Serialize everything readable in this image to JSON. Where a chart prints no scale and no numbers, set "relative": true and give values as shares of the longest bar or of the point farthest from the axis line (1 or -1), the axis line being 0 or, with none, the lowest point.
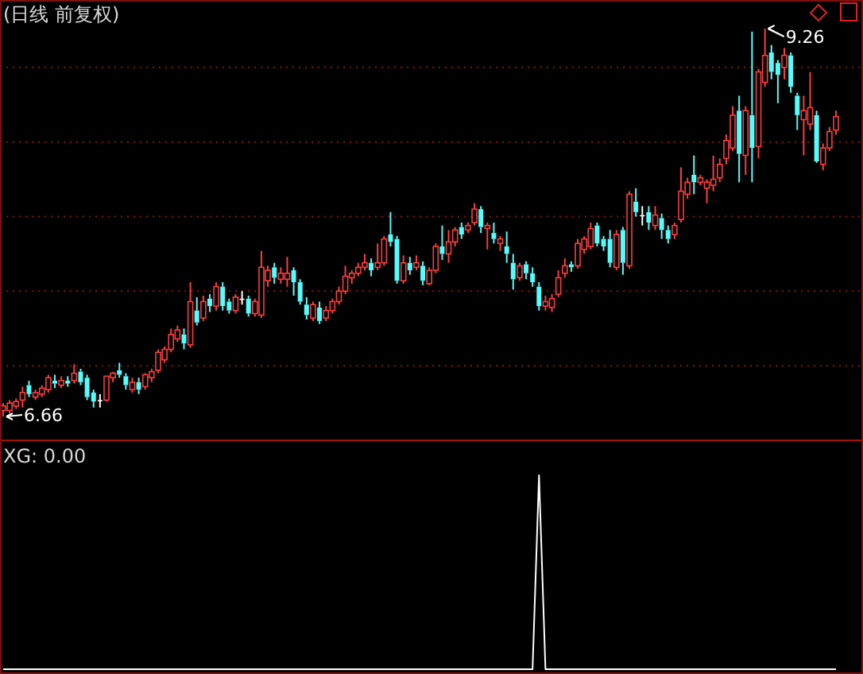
{
  "chart_data": [
    {
      "type": "candlestick",
      "title": "(日线 前复权)",
      "grid": "y",
      "categories": [
        null,
        null,
        null,
        null,
        null,
        null,
        null,
        null,
        null,
        null,
        null,
        null,
        null,
        null,
        null,
        null,
        null,
        null,
        null,
        null,
        null,
        null,
        null,
        null,
        null,
        null,
        null,
        null,
        null,
        null,
        null,
        null,
        null,
        null,
        null,
        null,
        null,
        null,
        null,
        null,
        null,
        null,
        null,
        null,
        null,
        null,
        null,
        null,
        null,
        null,
        null,
        null,
        null,
        null,
        null,
        null,
        null,
        null,
        null,
        null,
        null,
        null,
        null,
        null,
        null,
        null,
        null,
        null,
        null,
        null,
        null,
        null,
        null,
        null,
        null,
        null,
        null,
        null,
        null,
        null,
        null,
        null,
        null,
        null,
        null,
        null,
        null,
        null,
        null,
        null,
        null,
        null,
        null,
        null,
        null,
        null,
        null,
        null,
        null,
        null,
        null,
        null,
        null,
        null,
        null,
        null,
        null,
        null,
        null,
        null,
        null,
        null,
        null,
        null,
        null,
        null,
        null,
        null,
        null,
        null,
        null,
        null,
        null,
        null,
        null,
        null,
        null,
        null,
        null,
        null
      ],
      "ohlc": [
        [
          6.7,
          6.75,
          6.66,
          6.73
        ],
        [
          6.7,
          6.77,
          6.68,
          6.75
        ],
        [
          6.73,
          6.78,
          6.71,
          6.76
        ],
        [
          6.77,
          6.86,
          6.72,
          6.82
        ],
        [
          6.87,
          6.9,
          6.79,
          6.81
        ],
        [
          6.79,
          6.84,
          6.77,
          6.82
        ],
        [
          6.81,
          6.87,
          6.79,
          6.85
        ],
        [
          6.84,
          6.94,
          6.82,
          6.92
        ],
        [
          6.9,
          6.94,
          6.85,
          6.88
        ],
        [
          6.87,
          6.93,
          6.85,
          6.9
        ],
        [
          6.9,
          6.93,
          6.86,
          6.88
        ],
        [
          6.9,
          7.01,
          6.88,
          6.95
        ],
        [
          6.96,
          6.98,
          6.87,
          6.89
        ],
        [
          6.92,
          6.94,
          6.77,
          6.79
        ],
        [
          6.82,
          6.84,
          6.72,
          6.76
        ],
        [
          6.77,
          6.81,
          6.72,
          6.77
        ],
        [
          6.77,
          6.93,
          6.76,
          6.93
        ],
        [
          6.92,
          6.96,
          6.89,
          6.95
        ],
        [
          6.97,
          7.02,
          6.92,
          6.94
        ],
        [
          6.93,
          6.95,
          6.84,
          6.87
        ],
        [
          6.84,
          6.92,
          6.82,
          6.89
        ],
        [
          6.89,
          6.92,
          6.81,
          6.84
        ],
        [
          6.86,
          6.95,
          6.84,
          6.94
        ],
        [
          6.92,
          6.98,
          6.89,
          6.96
        ],
        [
          6.97,
          7.11,
          6.95,
          7.09
        ],
        [
          7.04,
          7.13,
          7.02,
          7.11
        ],
        [
          7.11,
          7.25,
          7.09,
          7.21
        ],
        [
          7.18,
          7.27,
          7.16,
          7.24
        ],
        [
          7.21,
          7.25,
          7.11,
          7.15
        ],
        [
          7.14,
          7.56,
          7.12,
          7.43
        ],
        [
          7.37,
          7.46,
          7.27,
          7.29
        ],
        [
          7.32,
          7.47,
          7.3,
          7.43
        ],
        [
          7.45,
          7.48,
          7.36,
          7.4
        ],
        [
          7.4,
          7.56,
          7.37,
          7.53
        ],
        [
          7.53,
          7.56,
          7.37,
          7.4
        ],
        [
          7.43,
          7.45,
          7.35,
          7.37
        ],
        [
          7.37,
          7.48,
          7.35,
          7.46
        ],
        [
          7.45,
          7.5,
          7.41,
          7.45
        ],
        [
          7.45,
          7.47,
          7.33,
          7.35
        ],
        [
          7.35,
          7.45,
          7.33,
          7.43
        ],
        [
          7.34,
          7.77,
          7.32,
          7.66
        ],
        [
          7.57,
          7.67,
          7.53,
          7.64
        ],
        [
          7.66,
          7.69,
          7.55,
          7.59
        ],
        [
          7.58,
          7.66,
          7.55,
          7.62
        ],
        [
          7.58,
          7.73,
          7.53,
          7.62
        ],
        [
          7.64,
          7.66,
          7.47,
          7.56
        ],
        [
          7.56,
          7.58,
          7.41,
          7.43
        ],
        [
          7.41,
          7.46,
          7.31,
          7.34
        ],
        [
          7.32,
          7.43,
          7.3,
          7.41
        ],
        [
          7.39,
          7.43,
          7.28,
          7.3
        ],
        [
          7.32,
          7.4,
          7.3,
          7.37
        ],
        [
          7.37,
          7.45,
          7.35,
          7.43
        ],
        [
          7.43,
          7.53,
          7.41,
          7.5
        ],
        [
          7.5,
          7.67,
          7.48,
          7.6
        ],
        [
          7.59,
          7.64,
          7.55,
          7.62
        ],
        [
          7.62,
          7.69,
          7.6,
          7.66
        ],
        [
          7.66,
          7.75,
          7.64,
          7.69
        ],
        [
          7.69,
          7.72,
          7.6,
          7.64
        ],
        [
          7.66,
          7.82,
          7.64,
          7.69
        ],
        [
          7.69,
          7.87,
          7.67,
          7.85
        ],
        [
          7.88,
          8.03,
          7.8,
          7.83
        ],
        [
          7.85,
          7.87,
          7.55,
          7.57
        ],
        [
          7.57,
          7.74,
          7.55,
          7.69
        ],
        [
          7.69,
          7.73,
          7.61,
          7.64
        ],
        [
          7.66,
          7.74,
          7.64,
          7.69
        ],
        [
          7.67,
          7.7,
          7.54,
          7.57
        ],
        [
          7.55,
          7.66,
          7.54,
          7.64
        ],
        [
          7.64,
          7.82,
          7.62,
          7.8
        ],
        [
          7.8,
          7.94,
          7.71,
          7.75
        ],
        [
          7.75,
          7.91,
          7.69,
          7.83
        ],
        [
          7.83,
          7.93,
          7.8,
          7.91
        ],
        [
          7.93,
          7.96,
          7.85,
          7.88
        ],
        [
          7.91,
          7.96,
          7.89,
          7.94
        ],
        [
          7.96,
          8.09,
          7.94,
          8.05
        ],
        [
          8.05,
          8.07,
          7.89,
          7.93
        ],
        [
          7.92,
          7.96,
          7.78,
          7.94
        ],
        [
          7.89,
          7.96,
          7.82,
          7.85
        ],
        [
          7.82,
          7.87,
          7.77,
          7.85
        ],
        [
          7.8,
          7.9,
          7.69,
          7.75
        ],
        [
          7.69,
          7.75,
          7.51,
          7.58
        ],
        [
          7.59,
          7.69,
          7.57,
          7.67
        ],
        [
          7.68,
          7.7,
          7.58,
          7.62
        ],
        [
          7.62,
          7.66,
          7.53,
          7.56
        ],
        [
          7.53,
          7.56,
          7.37,
          7.4
        ],
        [
          7.4,
          7.47,
          7.37,
          7.43
        ],
        [
          7.39,
          7.48,
          7.36,
          7.45
        ],
        [
          7.48,
          7.64,
          7.46,
          7.59
        ],
        [
          7.62,
          7.72,
          7.59,
          7.67
        ],
        [
          7.68,
          7.7,
          7.63,
          7.66
        ],
        [
          7.67,
          7.85,
          7.65,
          7.82
        ],
        [
          7.78,
          7.87,
          7.75,
          7.85
        ],
        [
          7.8,
          7.96,
          7.78,
          7.92
        ],
        [
          7.94,
          7.96,
          7.8,
          7.82
        ],
        [
          7.85,
          7.87,
          7.77,
          7.8
        ],
        [
          7.85,
          7.91,
          7.66,
          7.69
        ],
        [
          7.66,
          7.91,
          7.64,
          7.88
        ],
        [
          7.91,
          7.93,
          7.61,
          7.69
        ],
        [
          7.67,
          8.17,
          7.65,
          8.15
        ],
        [
          8.1,
          8.19,
          8.0,
          8.03
        ],
        [
          8.01,
          8.07,
          7.94,
          8.01
        ],
        [
          8.03,
          8.07,
          7.91,
          7.96
        ],
        [
          7.94,
          8.07,
          7.91,
          8.01
        ],
        [
          7.99,
          8.02,
          7.85,
          7.91
        ],
        [
          7.91,
          7.94,
          7.82,
          7.85
        ],
        [
          7.88,
          7.96,
          7.85,
          7.94
        ],
        [
          7.98,
          8.33,
          7.96,
          8.17
        ],
        [
          8.15,
          8.26,
          8.12,
          8.23
        ],
        [
          8.28,
          8.41,
          8.15,
          8.23
        ],
        [
          8.23,
          8.28,
          8.21,
          8.26
        ],
        [
          8.19,
          8.25,
          8.09,
          8.23
        ],
        [
          8.21,
          8.41,
          8.17,
          8.25
        ],
        [
          8.26,
          8.39,
          8.23,
          8.35
        ],
        [
          8.39,
          8.55,
          8.35,
          8.51
        ],
        [
          8.46,
          8.74,
          8.44,
          8.68
        ],
        [
          8.71,
          8.81,
          8.23,
          8.42
        ],
        [
          8.41,
          8.74,
          8.28,
          8.71
        ],
        [
          8.68,
          9.24,
          8.23,
          8.46
        ],
        [
          8.47,
          8.99,
          8.39,
          8.97
        ],
        [
          8.9,
          9.26,
          8.87,
          9.08
        ],
        [
          9.1,
          9.15,
          8.92,
          8.97
        ],
        [
          9.03,
          9.05,
          8.76,
          8.95
        ],
        [
          9.0,
          9.13,
          8.92,
          9.08
        ],
        [
          9.08,
          9.1,
          8.83,
          8.87
        ],
        [
          8.81,
          8.83,
          8.58,
          8.68
        ],
        [
          8.65,
          8.81,
          8.41,
          8.71
        ],
        [
          8.62,
          8.97,
          8.58,
          8.73
        ],
        [
          8.68,
          8.71,
          8.36,
          8.37
        ],
        [
          8.35,
          8.49,
          8.31,
          8.46
        ],
        [
          8.46,
          8.6,
          8.44,
          8.57
        ],
        [
          8.58,
          8.71,
          8.55,
          8.67
        ]
      ],
      "yticks": [
        {
          "value": 7,
          "label": null
        },
        {
          "value": 7.5,
          "label": null
        },
        {
          "value": 8,
          "label": null
        },
        {
          "value": 8.5,
          "label": null
        },
        {
          "value": 9,
          "label": null
        }
      ],
      "annotations": [
        "6.66",
        "9.26"
      ]
    },
    {
      "type": "line",
      "title": "XG: 0.00",
      "relative": true,
      "categories": [
        null,
        null,
        null,
        null,
        null,
        null,
        null,
        null,
        null,
        null,
        null,
        null,
        null,
        null,
        null,
        null,
        null,
        null,
        null,
        null,
        null,
        null,
        null,
        null,
        null,
        null,
        null,
        null,
        null,
        null,
        null,
        null,
        null,
        null,
        null,
        null,
        null,
        null,
        null,
        null,
        null,
        null,
        null,
        null,
        null,
        null,
        null,
        null,
        null,
        null,
        null,
        null,
        null,
        null,
        null,
        null,
        null,
        null,
        null,
        null,
        null,
        null,
        null,
        null,
        null,
        null,
        null,
        null,
        null,
        null,
        null,
        null,
        null,
        null,
        null,
        null,
        null,
        null,
        null,
        null,
        null,
        null,
        null,
        null,
        null,
        null,
        null,
        null,
        null,
        null,
        null,
        null,
        null,
        null,
        null,
        null,
        null,
        null,
        null,
        null,
        null,
        null,
        null,
        null,
        null,
        null,
        null,
        null,
        null,
        null,
        null,
        null,
        null,
        null,
        null,
        null,
        null,
        null,
        null,
        null,
        null,
        null,
        null,
        null,
        null,
        null,
        null,
        null,
        null,
        null
      ],
      "series": [
        {
          "color": "#ffffff",
          "values": [
            0,
            0,
            0,
            0,
            0,
            0,
            0,
            0,
            0,
            0,
            0,
            0,
            0,
            0,
            0,
            0,
            0,
            0,
            0,
            0,
            0,
            0,
            0,
            0,
            0,
            0,
            0,
            0,
            0,
            0,
            0,
            0,
            0,
            0,
            0,
            0,
            0,
            0,
            0,
            0,
            0,
            0,
            0,
            0,
            0,
            0,
            0,
            0,
            0,
            0,
            0,
            0,
            0,
            0,
            0,
            0,
            0,
            0,
            0,
            0,
            0,
            0,
            0,
            0,
            0,
            0,
            0,
            0,
            0,
            0,
            0,
            0,
            0,
            0,
            0,
            0,
            0,
            0,
            0,
            0,
            0,
            0,
            0,
            1,
            0,
            0,
            0,
            0,
            0,
            0,
            0,
            0,
            0,
            0,
            0,
            0,
            0,
            0,
            0,
            0,
            0,
            0,
            0,
            0,
            0,
            0,
            0,
            0,
            0,
            0,
            0,
            0,
            0,
            0,
            0,
            0,
            0,
            0,
            0,
            0,
            0,
            0,
            0,
            0,
            0,
            0,
            0,
            0,
            0,
            0
          ]
        }
      ]
    }
  ]
}
